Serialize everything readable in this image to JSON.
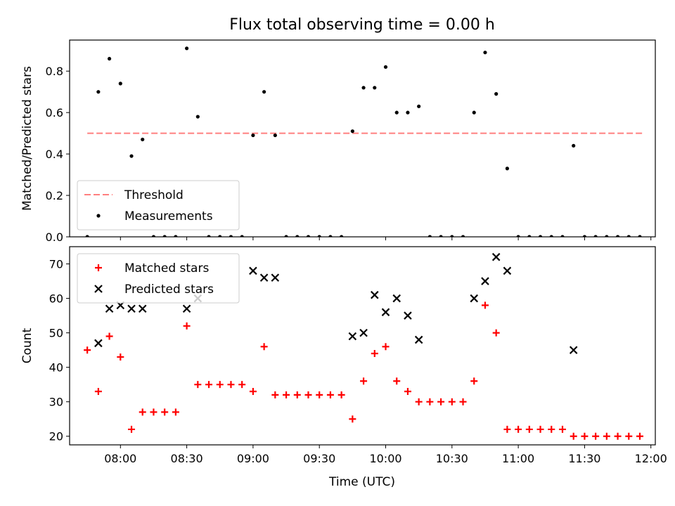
{
  "chart_data": {
    "title": "Flux total observing time = 0.00 h",
    "xlabel": "Time (UTC)",
    "x_ticks": [
      "08:00",
      "08:30",
      "09:00",
      "09:30",
      "10:00",
      "10:30",
      "11:00",
      "11:30",
      "12:00"
    ],
    "panels": [
      {
        "type": "scatter",
        "ylabel": "Matched/Predicted stars",
        "ylim": [
          0,
          0.95
        ],
        "y_ticks": [
          "0.0",
          "0.2",
          "0.4",
          "0.6",
          "0.8"
        ],
        "legend_position": "lower left",
        "threshold": {
          "name": "Threshold",
          "value": 0.5,
          "x_range": [
            "07:45",
            "11:57"
          ],
          "color": "#ff7f7f",
          "style": "dashed"
        },
        "series": [
          {
            "name": "Measurements",
            "color": "#000000",
            "marker": "dot",
            "points": [
              [
                "07:45",
                0.0
              ],
              [
                "07:50",
                0.7
              ],
              [
                "07:55",
                0.86
              ],
              [
                "08:00",
                0.74
              ],
              [
                "08:05",
                0.39
              ],
              [
                "08:10",
                0.47
              ],
              [
                "08:15",
                0.0
              ],
              [
                "08:20",
                0.0
              ],
              [
                "08:25",
                0.0
              ],
              [
                "08:30",
                0.91
              ],
              [
                "08:35",
                0.58
              ],
              [
                "08:40",
                0.0
              ],
              [
                "08:45",
                0.0
              ],
              [
                "08:50",
                0.0
              ],
              [
                "08:55",
                0.0
              ],
              [
                "09:00",
                0.49
              ],
              [
                "09:05",
                0.7
              ],
              [
                "09:10",
                0.49
              ],
              [
                "09:15",
                0.0
              ],
              [
                "09:20",
                0.0
              ],
              [
                "09:25",
                0.0
              ],
              [
                "09:30",
                0.0
              ],
              [
                "09:35",
                0.0
              ],
              [
                "09:40",
                0.0
              ],
              [
                "09:45",
                0.51
              ],
              [
                "09:50",
                0.72
              ],
              [
                "09:55",
                0.72
              ],
              [
                "10:00",
                0.82
              ],
              [
                "10:05",
                0.6
              ],
              [
                "10:10",
                0.6
              ],
              [
                "10:15",
                0.63
              ],
              [
                "10:20",
                0.0
              ],
              [
                "10:25",
                0.0
              ],
              [
                "10:30",
                0.0
              ],
              [
                "10:35",
                0.0
              ],
              [
                "10:40",
                0.6
              ],
              [
                "10:45",
                0.89
              ],
              [
                "10:50",
                0.69
              ],
              [
                "10:55",
                0.33
              ],
              [
                "11:00",
                0.0
              ],
              [
                "11:05",
                0.0
              ],
              [
                "11:10",
                0.0
              ],
              [
                "11:15",
                0.0
              ],
              [
                "11:20",
                0.0
              ],
              [
                "11:25",
                0.44
              ],
              [
                "11:30",
                0.0
              ],
              [
                "11:35",
                0.0
              ],
              [
                "11:40",
                0.0
              ],
              [
                "11:45",
                0.0
              ],
              [
                "11:50",
                0.0
              ],
              [
                "11:55",
                0.0
              ]
            ]
          }
        ]
      },
      {
        "type": "scatter",
        "ylabel": "Count",
        "ylim": [
          17.5,
          75
        ],
        "y_ticks": [
          "20",
          "30",
          "40",
          "50",
          "60",
          "70"
        ],
        "legend_position": "upper left",
        "series": [
          {
            "name": "Matched stars",
            "color": "#ff0000",
            "marker": "plus",
            "points": [
              [
                "07:45",
                45
              ],
              [
                "07:50",
                33
              ],
              [
                "07:55",
                49
              ],
              [
                "08:00",
                43
              ],
              [
                "08:05",
                22
              ],
              [
                "08:10",
                27
              ],
              [
                "08:15",
                27
              ],
              [
                "08:20",
                27
              ],
              [
                "08:25",
                27
              ],
              [
                "08:30",
                52
              ],
              [
                "08:35",
                35
              ],
              [
                "08:40",
                35
              ],
              [
                "08:45",
                35
              ],
              [
                "08:50",
                35
              ],
              [
                "08:55",
                35
              ],
              [
                "09:00",
                33
              ],
              [
                "09:05",
                46
              ],
              [
                "09:10",
                32
              ],
              [
                "09:15",
                32
              ],
              [
                "09:20",
                32
              ],
              [
                "09:25",
                32
              ],
              [
                "09:30",
                32
              ],
              [
                "09:35",
                32
              ],
              [
                "09:40",
                32
              ],
              [
                "09:45",
                25
              ],
              [
                "09:50",
                36
              ],
              [
                "09:55",
                44
              ],
              [
                "10:00",
                46
              ],
              [
                "10:05",
                36
              ],
              [
                "10:10",
                33
              ],
              [
                "10:15",
                30
              ],
              [
                "10:20",
                30
              ],
              [
                "10:25",
                30
              ],
              [
                "10:30",
                30
              ],
              [
                "10:35",
                30
              ],
              [
                "10:40",
                36
              ],
              [
                "10:45",
                58
              ],
              [
                "10:50",
                50
              ],
              [
                "10:55",
                22
              ],
              [
                "11:00",
                22
              ],
              [
                "11:05",
                22
              ],
              [
                "11:10",
                22
              ],
              [
                "11:15",
                22
              ],
              [
                "11:20",
                22
              ],
              [
                "11:25",
                20
              ],
              [
                "11:30",
                20
              ],
              [
                "11:35",
                20
              ],
              [
                "11:40",
                20
              ],
              [
                "11:45",
                20
              ],
              [
                "11:50",
                20
              ],
              [
                "11:55",
                20
              ]
            ]
          },
          {
            "name": "Predicted stars",
            "color": "#000000",
            "marker": "x",
            "points": [
              [
                "07:50",
                47
              ],
              [
                "07:55",
                57
              ],
              [
                "08:00",
                58
              ],
              [
                "08:05",
                57
              ],
              [
                "08:10",
                57
              ],
              [
                "08:30",
                57
              ],
              [
                "08:35",
                60
              ],
              [
                "09:00",
                68
              ],
              [
                "09:05",
                66
              ],
              [
                "09:10",
                66
              ],
              [
                "09:45",
                49
              ],
              [
                "09:50",
                50
              ],
              [
                "09:55",
                61
              ],
              [
                "10:00",
                56
              ],
              [
                "10:05",
                60
              ],
              [
                "10:10",
                55
              ],
              [
                "10:15",
                48
              ],
              [
                "10:40",
                60
              ],
              [
                "10:45",
                65
              ],
              [
                "10:50",
                72
              ],
              [
                "10:55",
                68
              ],
              [
                "11:25",
                45
              ]
            ]
          }
        ]
      }
    ]
  }
}
